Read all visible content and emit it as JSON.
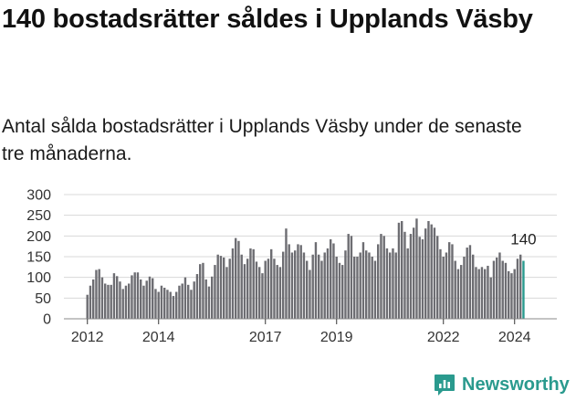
{
  "title": "140 bostadsrätter såldes i Upplands Väsby",
  "subtitle": "Antal sålda bostadsrätter i Upplands Väsby under de senaste tre månaderna.",
  "brand": {
    "name": "Newsworthy",
    "icon": "newsworthy-logo-icon"
  },
  "chart_data": {
    "type": "bar",
    "title": "",
    "xlabel": "",
    "ylabel": "",
    "ylim": [
      0,
      300
    ],
    "yticks": [
      "0",
      "50",
      "100",
      "150",
      "200",
      "250",
      "300"
    ],
    "xticks": [
      {
        "label": "2012",
        "index": 0
      },
      {
        "label": "2014",
        "index": 24
      },
      {
        "label": "2017",
        "index": 60
      },
      {
        "label": "2019",
        "index": 84
      },
      {
        "label": "2022",
        "index": 120
      },
      {
        "label": "2024",
        "index": 144
      }
    ],
    "colors": {
      "bars": "#6d6d72",
      "last_bar": "#2a9a8e",
      "grid": "#d8d8d8"
    },
    "grid": true,
    "last_value_label": "140",
    "values": [
      58,
      80,
      95,
      118,
      120,
      100,
      85,
      82,
      82,
      110,
      103,
      90,
      72,
      80,
      85,
      105,
      112,
      112,
      95,
      80,
      92,
      102,
      98,
      72,
      65,
      80,
      75,
      70,
      65,
      55,
      65,
      80,
      85,
      100,
      82,
      70,
      90,
      108,
      132,
      135,
      95,
      78,
      102,
      130,
      155,
      152,
      148,
      125,
      145,
      170,
      195,
      188,
      155,
      132,
      145,
      170,
      168,
      138,
      125,
      110,
      140,
      145,
      168,
      145,
      130,
      125,
      162,
      218,
      180,
      160,
      165,
      180,
      178,
      160,
      140,
      118,
      155,
      185,
      155,
      140,
      160,
      170,
      192,
      182,
      150,
      135,
      130,
      165,
      205,
      200,
      150,
      150,
      160,
      185,
      165,
      160,
      150,
      140,
      180,
      205,
      200,
      170,
      160,
      170,
      160,
      232,
      236,
      210,
      170,
      205,
      220,
      242,
      198,
      192,
      218,
      236,
      228,
      220,
      200,
      168,
      150,
      160,
      185,
      180,
      140,
      120,
      130,
      150,
      172,
      178,
      155,
      125,
      120,
      125,
      120,
      128,
      100,
      140,
      148,
      160,
      140,
      135,
      115,
      110,
      120,
      145,
      155,
      140
    ]
  }
}
